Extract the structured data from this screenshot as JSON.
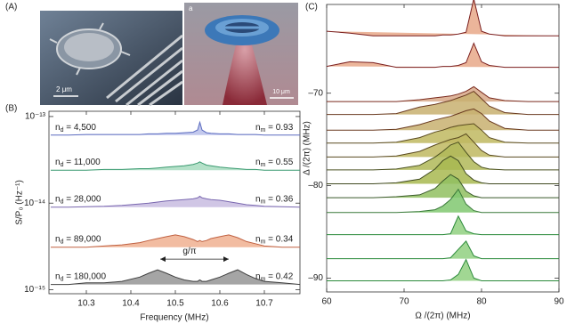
{
  "panel_labels": [
    "(A)",
    "(B)",
    "(C)"
  ],
  "images": [
    {
      "scale_label": "2 μm"
    },
    {
      "corner_label": "a",
      "scale_label": "10 μm"
    }
  ],
  "chart_data": [
    {
      "type": "line",
      "log_y": true,
      "fill": true,
      "xlabel": "Frequency (MHz)",
      "ylabel": "S/P₀ (Hz⁻¹)",
      "xlim": [
        10.216,
        10.78
      ],
      "xticks": [
        10.3,
        10.4,
        10.5,
        10.6,
        10.7
      ],
      "ylim": [
        9e-16,
        1.15e-13
      ],
      "yticks": [
        {
          "value": 1e-15,
          "label": "10⁻¹⁵"
        },
        {
          "value": 1e-14,
          "label": "10⁻¹⁴"
        },
        {
          "value": 1e-13,
          "label": "10⁻¹³"
        }
      ],
      "x": [
        10.22,
        10.26,
        10.3,
        10.34,
        10.38,
        10.42,
        10.44,
        10.46,
        10.48,
        10.5,
        10.52,
        10.54,
        10.55,
        10.555,
        10.56,
        10.57,
        10.58,
        10.6,
        10.62,
        10.64,
        10.66,
        10.68,
        10.7,
        10.74,
        10.78
      ],
      "series": [
        {
          "color": "#5c6cc0",
          "fill_color": "#b8c0ea",
          "nd": [
            "n",
            "d",
            " = 4,500"
          ],
          "nm": [
            "n",
            "m",
            " = 0.93"
          ],
          "values": [
            6.1e-14,
            6.1e-14,
            6.2e-14,
            6.2e-14,
            6.2e-14,
            6.2e-14,
            6.3e-14,
            6.3e-14,
            6.4e-14,
            6.4e-14,
            6.5e-14,
            6.6e-14,
            7e-14,
            8.6e-14,
            7e-14,
            6.5e-14,
            6.4e-14,
            6.3e-14,
            6.3e-14,
            6.2e-14,
            6.2e-14,
            6.2e-14,
            6.1e-14,
            6.1e-14,
            6.1e-14
          ]
        },
        {
          "color": "#3a9a70",
          "fill_color": "#a8dcc0",
          "nd": [
            "n",
            "d",
            " = 11,000"
          ],
          "nm": [
            "n",
            "m",
            " = 0.55"
          ],
          "values": [
            2.4e-14,
            2.4e-14,
            2.4e-14,
            2.45e-14,
            2.45e-14,
            2.5e-14,
            2.5e-14,
            2.55e-14,
            2.6e-14,
            2.65e-14,
            2.7e-14,
            2.8e-14,
            2.9e-14,
            3e-14,
            2.9e-14,
            2.75e-14,
            2.7e-14,
            2.6e-14,
            2.55e-14,
            2.5e-14,
            2.45e-14,
            2.45e-14,
            2.4e-14,
            2.4e-14,
            2.4e-14
          ]
        },
        {
          "color": "#7a68b0",
          "fill_color": "#c8bce0",
          "nd": [
            "n",
            "d",
            " = 28,000"
          ],
          "nm": [
            "n",
            "m",
            " = 0.36"
          ],
          "values": [
            9e-15,
            9e-15,
            9.1e-15,
            9.2e-15,
            9.4e-15,
            9.8e-15,
            1e-14,
            1.03e-14,
            1.06e-14,
            1.08e-14,
            1.1e-14,
            1.12e-14,
            1.15e-14,
            1.2e-14,
            1.15e-14,
            1.12e-14,
            1.1e-14,
            1.08e-14,
            1.04e-14,
            1e-14,
            9.6e-15,
            9.4e-15,
            9.2e-15,
            9.1e-15,
            9e-15
          ]
        },
        {
          "color": "#c06040",
          "fill_color": "#f0b090",
          "nd": [
            "n",
            "d",
            " = 89,000"
          ],
          "nm": [
            "n",
            "m",
            " = 0.34"
          ],
          "values": [
            3.1e-15,
            3.1e-15,
            3.1e-15,
            3.2e-15,
            3.3e-15,
            3.5e-15,
            3.7e-15,
            3.9e-15,
            4.1e-15,
            4.3e-15,
            4.1e-15,
            3.8e-15,
            3.6e-15,
            3.7e-15,
            3.6e-15,
            3.7e-15,
            3.9e-15,
            4.1e-15,
            4.3e-15,
            4e-15,
            3.6e-15,
            3.4e-15,
            3.2e-15,
            3.1e-15,
            3.1e-15
          ]
        },
        {
          "color": "#404040",
          "fill_color": "#959595",
          "nd": [
            "n",
            "d",
            " = 180,000"
          ],
          "nm": [
            "n",
            "m",
            " = 0.42"
          ],
          "values": [
            1.15e-15,
            1.15e-15,
            1.2e-15,
            1.2e-15,
            1.25e-15,
            1.4e-15,
            1.55e-15,
            1.7e-15,
            1.55e-15,
            1.4e-15,
            1.3e-15,
            1.25e-15,
            1.25e-15,
            1.3e-15,
            1.25e-15,
            1.25e-15,
            1.3e-15,
            1.4e-15,
            1.55e-15,
            1.7e-15,
            1.5e-15,
            1.35e-15,
            1.25e-15,
            1.2e-15,
            1.15e-15
          ]
        }
      ],
      "annotation": "g/π"
    },
    {
      "type": "waterfall",
      "fill": true,
      "xlabel": "Ω /(2π) (MHz)",
      "ylabel": "Δ /(2π) (MHz)",
      "xlim": [
        60,
        90
      ],
      "xticks": [
        60,
        70,
        80,
        90
      ],
      "ylim": [
        -91.5,
        -60.4
      ],
      "yticks": [
        {
          "value": -90,
          "label": "–90"
        },
        {
          "value": -80,
          "label": "–80"
        },
        {
          "value": -70,
          "label": "–70"
        }
      ],
      "x": [
        60,
        63,
        66,
        69,
        72,
        74,
        75,
        76,
        77,
        78,
        79,
        80,
        81,
        83,
        86,
        90
      ],
      "series": [
        {
          "color": "#7a1e1e",
          "fill_color": "#e8a888",
          "values": [
            -63.3,
            -63.5,
            -63.8,
            -63.8,
            -63.8,
            -63.8,
            -63.7,
            -63.7,
            -63.6,
            -63.4,
            -59.8,
            -63.3,
            -63.6,
            -63.8,
            -63.8,
            -63.8
          ]
        },
        {
          "color": "#7a1e1e",
          "fill_color": "#e8a888",
          "values": [
            -67.1,
            -66.6,
            -66.7,
            -67.2,
            -67.2,
            -67.2,
            -67.1,
            -67.1,
            -67.0,
            -66.7,
            -64.6,
            -66.6,
            -67.0,
            -67.2,
            -67.2,
            -67.2
          ]
        },
        {
          "color": "#7a2a1e",
          "fill_color": "#d8a888",
          "values": [
            -70.9,
            -70.9,
            -70.9,
            -70.9,
            -70.7,
            -70.5,
            -70.4,
            -70.3,
            -70.1,
            -69.8,
            -69.3,
            -69.9,
            -70.5,
            -70.8,
            -70.9,
            -70.9
          ]
        },
        {
          "color": "#6a3a20",
          "fill_color": "#c8b070",
          "values": [
            -72.3,
            -72.3,
            -72.3,
            -72.2,
            -71.5,
            -71.2,
            -71.0,
            -70.8,
            -70.5,
            -70.2,
            -69.8,
            -70.6,
            -71.4,
            -72.1,
            -72.3,
            -72.3
          ]
        },
        {
          "color": "#6a3a20",
          "fill_color": "#c8b070",
          "values": [
            -74,
            -74,
            -74,
            -73.9,
            -73.4,
            -72.9,
            -72.7,
            -72.5,
            -72.2,
            -71.9,
            -71.7,
            -72.2,
            -73.0,
            -73.8,
            -74,
            -74
          ]
        },
        {
          "color": "#5a4a20",
          "fill_color": "#c0b860",
          "values": [
            -75.4,
            -75.4,
            -75.4,
            -75.3,
            -74.8,
            -74.2,
            -74.0,
            -73.7,
            -73.5,
            -73.4,
            -73.3,
            -74.0,
            -74.8,
            -75.3,
            -75.4,
            -75.4
          ]
        },
        {
          "color": "#5a4a20",
          "fill_color": "#c0b860",
          "values": [
            -76.9,
            -76.9,
            -76.9,
            -76.8,
            -76.3,
            -75.6,
            -75.3,
            -75.0,
            -74.8,
            -74.4,
            -75.3,
            -76.2,
            -76.7,
            -76.9,
            -76.9,
            -76.9
          ]
        },
        {
          "color": "#4a5020",
          "fill_color": "#b0b858",
          "values": [
            -78.3,
            -78.3,
            -78.3,
            -78.2,
            -77.8,
            -76.9,
            -76.3,
            -75.6,
            -75.3,
            -76.4,
            -77.4,
            -78.0,
            -78.2,
            -78.3,
            -78.3,
            -78.3
          ]
        },
        {
          "color": "#404a20",
          "fill_color": "#a8b850",
          "values": [
            -79.8,
            -79.8,
            -79.8,
            -79.7,
            -79.3,
            -78.2,
            -77.3,
            -76.8,
            -77.3,
            -78.7,
            -79.4,
            -79.7,
            -79.8,
            -79.8,
            -79.8,
            -79.8
          ]
        },
        {
          "color": "#3a5a2a",
          "fill_color": "#90c060",
          "values": [
            -81.3,
            -81.3,
            -81.3,
            -81.2,
            -81.0,
            -80.3,
            -79.5,
            -78.8,
            -79.3,
            -80.6,
            -81.1,
            -81.3,
            -81.3,
            -81.3,
            -81.3,
            -81.3
          ]
        },
        {
          "color": "#3a7a3a",
          "fill_color": "#80c870",
          "values": [
            -82.9,
            -82.9,
            -82.9,
            -82.9,
            -82.8,
            -82.6,
            -82.2,
            -81.5,
            -80.4,
            -82.0,
            -82.7,
            -82.9,
            -82.9,
            -82.9,
            -82.9,
            -82.9
          ]
        },
        {
          "color": "#2a8a3a",
          "fill_color": "#90d080",
          "values": [
            -85.3,
            -85.3,
            -85.3,
            -85.3,
            -85.3,
            -85.3,
            -85.3,
            -85.2,
            -83.3,
            -84.9,
            -85.2,
            -85.3,
            -85.3,
            -85.3,
            -85.3,
            -85.3
          ]
        },
        {
          "color": "#2a8a3a",
          "fill_color": "#90d080",
          "values": [
            -87.9,
            -87.9,
            -87.9,
            -87.9,
            -87.9,
            -87.9,
            -87.9,
            -87.8,
            -86.9,
            -86.0,
            -87.6,
            -87.9,
            -87.9,
            -87.9,
            -87.9,
            -87.9
          ]
        },
        {
          "color": "#2a8a3a",
          "fill_color": "#90d080",
          "values": [
            -90.3,
            -90.3,
            -90.3,
            -90.3,
            -90.3,
            -90.3,
            -90.3,
            -90.2,
            -89.6,
            -88.0,
            -90.0,
            -90.3,
            -90.3,
            -90.3,
            -90.3,
            -90.3
          ]
        }
      ]
    }
  ]
}
